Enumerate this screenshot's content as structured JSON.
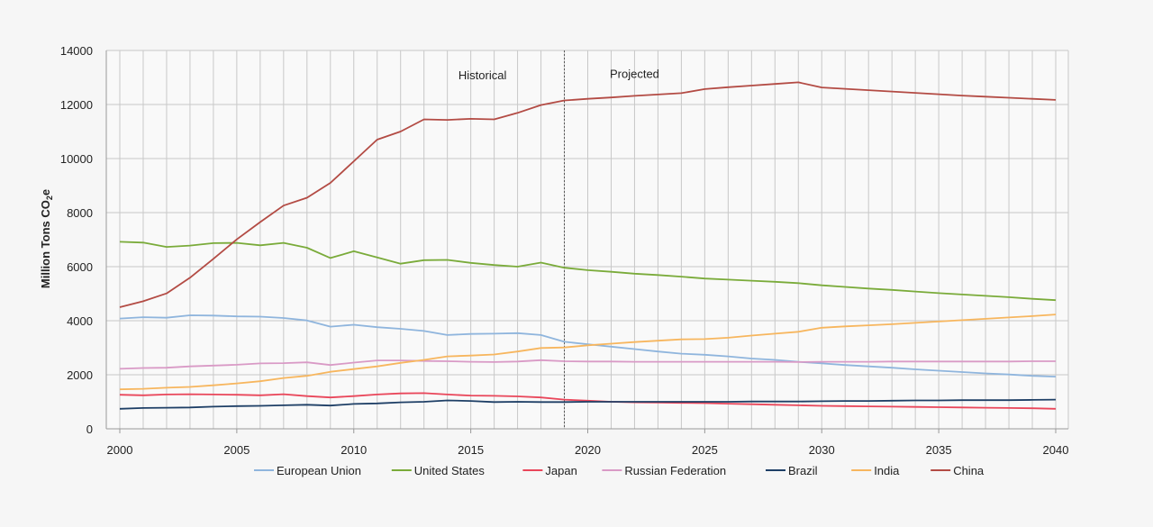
{
  "chart_data": {
    "type": "line",
    "title": "",
    "xlabel": "",
    "ylabel": "Million Tons CO",
    "ylabel_sub": "2",
    "ylabel_suffix": "e",
    "xlim": [
      2000,
      2040
    ],
    "ylim": [
      0,
      14000
    ],
    "xticks": [
      2000,
      2005,
      2010,
      2015,
      2020,
      2025,
      2030,
      2035,
      2040
    ],
    "yticks": [
      0,
      2000,
      4000,
      6000,
      8000,
      10000,
      12000,
      14000
    ],
    "grid": true,
    "legend_position": "bottom",
    "divider_x": 2019,
    "annotations": [
      {
        "text": "Historical",
        "x": 2015.5,
        "y": 13100
      },
      {
        "text": "Projected",
        "x": 2022,
        "y": 13150
      }
    ],
    "x": [
      2000,
      2001,
      2002,
      2003,
      2004,
      2005,
      2006,
      2007,
      2008,
      2009,
      2010,
      2011,
      2012,
      2013,
      2014,
      2015,
      2016,
      2017,
      2018,
      2019,
      2020,
      2021,
      2022,
      2023,
      2024,
      2025,
      2026,
      2027,
      2028,
      2029,
      2030,
      2031,
      2032,
      2033,
      2034,
      2035,
      2036,
      2037,
      2038,
      2039,
      2040
    ],
    "series": [
      {
        "name": "European Union",
        "color": "#8fb5dd",
        "values": [
          4080,
          4130,
          4110,
          4200,
          4190,
          4160,
          4150,
          4100,
          4010,
          3780,
          3850,
          3760,
          3700,
          3620,
          3470,
          3510,
          3520,
          3540,
          3470,
          3220,
          3130,
          3040,
          2950,
          2860,
          2780,
          2740,
          2680,
          2600,
          2550,
          2480,
          2420,
          2360,
          2310,
          2260,
          2200,
          2150,
          2100,
          2050,
          2010,
          1960,
          1930
        ]
      },
      {
        "name": "United States",
        "color": "#7aab3a",
        "values": [
          6920,
          6890,
          6730,
          6780,
          6870,
          6880,
          6790,
          6880,
          6700,
          6320,
          6570,
          6340,
          6110,
          6240,
          6250,
          6140,
          6060,
          6000,
          6150,
          5960,
          5870,
          5810,
          5740,
          5690,
          5630,
          5560,
          5520,
          5480,
          5440,
          5390,
          5310,
          5250,
          5190,
          5140,
          5080,
          5020,
          4970,
          4920,
          4870,
          4810,
          4760
        ]
      },
      {
        "name": "Japan",
        "color": "#e9465a",
        "values": [
          1260,
          1240,
          1270,
          1280,
          1270,
          1260,
          1240,
          1280,
          1210,
          1160,
          1210,
          1270,
          1310,
          1320,
          1270,
          1230,
          1220,
          1200,
          1160,
          1080,
          1040,
          1000,
          980,
          970,
          960,
          950,
          930,
          910,
          890,
          870,
          850,
          840,
          830,
          820,
          810,
          800,
          790,
          780,
          770,
          760,
          740
        ]
      },
      {
        "name": "Russian Federation",
        "color": "#d99ac6",
        "values": [
          2220,
          2250,
          2260,
          2310,
          2340,
          2370,
          2420,
          2430,
          2460,
          2360,
          2450,
          2530,
          2530,
          2510,
          2500,
          2480,
          2470,
          2490,
          2540,
          2500,
          2490,
          2490,
          2480,
          2480,
          2480,
          2480,
          2480,
          2480,
          2480,
          2470,
          2480,
          2480,
          2480,
          2490,
          2490,
          2490,
          2490,
          2490,
          2490,
          2500,
          2500
        ]
      },
      {
        "name": "Brazil",
        "color": "#1e3f66",
        "values": [
          740,
          770,
          780,
          790,
          820,
          840,
          850,
          870,
          890,
          860,
          920,
          940,
          980,
          1000,
          1050,
          1030,
          990,
          1000,
          990,
          990,
          1000,
          1000,
          1000,
          1000,
          1000,
          1000,
          1000,
          1010,
          1010,
          1010,
          1020,
          1030,
          1030,
          1040,
          1050,
          1050,
          1060,
          1060,
          1060,
          1070,
          1080
        ]
      },
      {
        "name": "India",
        "color": "#f7b65e",
        "values": [
          1460,
          1480,
          1520,
          1550,
          1610,
          1680,
          1760,
          1880,
          1960,
          2110,
          2210,
          2310,
          2440,
          2550,
          2680,
          2710,
          2750,
          2860,
          2990,
          3010,
          3090,
          3150,
          3210,
          3260,
          3310,
          3320,
          3370,
          3450,
          3520,
          3590,
          3740,
          3790,
          3830,
          3870,
          3920,
          3970,
          4020,
          4070,
          4120,
          4170,
          4230
        ]
      },
      {
        "name": "China",
        "color": "#b34b44",
        "values": [
          4500,
          4720,
          5010,
          5590,
          6290,
          7010,
          7650,
          8260,
          8550,
          9100,
          9900,
          10700,
          11000,
          11450,
          11430,
          11470,
          11450,
          11690,
          11980,
          12150,
          12210,
          12260,
          12320,
          12370,
          12420,
          12570,
          12640,
          12700,
          12760,
          12820,
          12630,
          12580,
          12530,
          12480,
          12430,
          12380,
          12330,
          12290,
          12250,
          12210,
          12170
        ]
      }
    ]
  }
}
